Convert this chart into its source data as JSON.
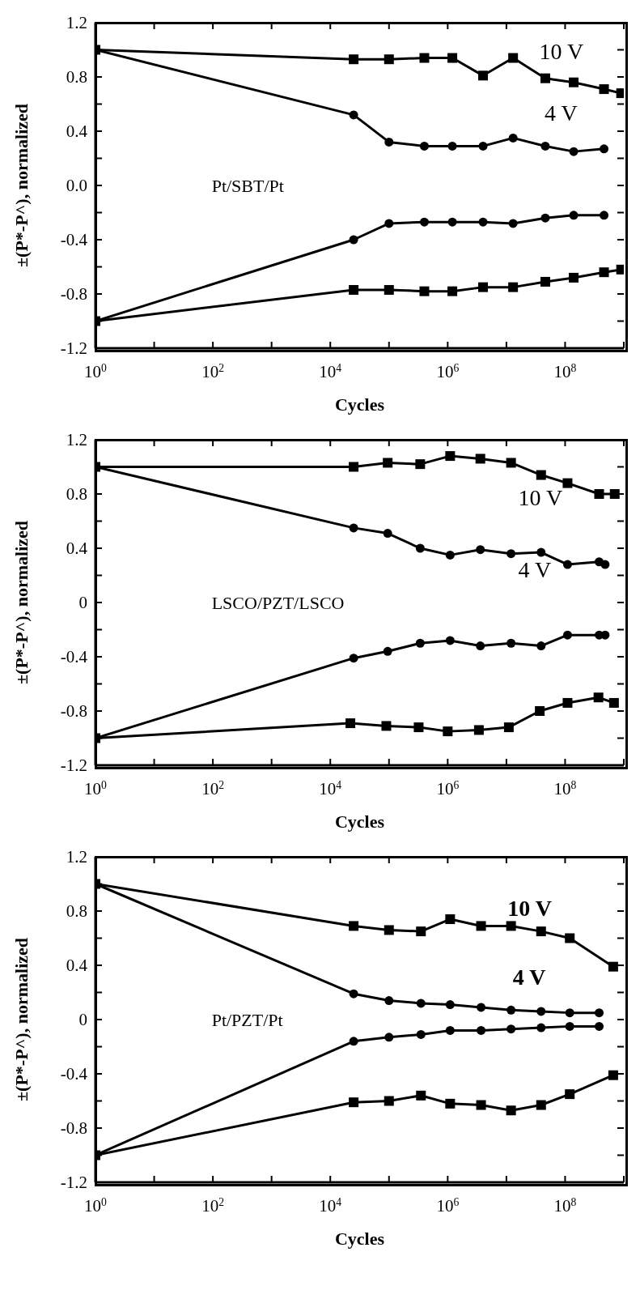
{
  "chart_data": [
    {
      "type": "line",
      "title": "Pt/SBT/Pt",
      "xlabel": "Cycles",
      "ylabel": "±(P*-P^),  normalized",
      "log": "x",
      "line_style": "solid",
      "xlim": [
        1,
        1000000000
      ],
      "xticks": [
        {
          "value": 1,
          "label": "10$^{0}$"
        },
        {
          "value": 10,
          "label": null
        },
        {
          "value": 100,
          "label": "10$^{2}$"
        },
        {
          "value": 1000,
          "label": null
        },
        {
          "value": 10000,
          "label": "10$^{4}$"
        },
        {
          "value": 100000,
          "label": null
        },
        {
          "value": 1000000,
          "label": "10$^{6}$"
        },
        {
          "value": 10000000,
          "label": null
        },
        {
          "value": 100000000,
          "label": "10$^{8}$"
        },
        {
          "value": 1000000000,
          "label": null
        }
      ],
      "ylim": [
        -1.2,
        1.2
      ],
      "yticks": [
        -1.2,
        {
          "value": -1.0,
          "label": null
        },
        -0.8,
        {
          "value": -0.6,
          "label": null
        },
        -0.4,
        {
          "value": -0.2,
          "label": null
        },
        {
          "value": 0,
          "label": "0.0"
        },
        {
          "value": 0.2,
          "label": null
        },
        0.4,
        {
          "value": 0.6,
          "label": null
        },
        0.8,
        {
          "value": 1.0,
          "label": null
        },
        1.2
      ],
      "series": [
        {
          "color": "#000000",
          "marker": "square",
          "x": [
            1,
            25000,
            100000,
            400000,
            1200000,
            4000000,
            13000000,
            46000000,
            140000000,
            460000000,
            900000000
          ],
          "values": [
            1.0,
            0.93,
            0.93,
            0.94,
            0.94,
            0.81,
            0.94,
            0.79,
            0.76,
            0.71,
            0.68
          ]
        },
        {
          "color": "#000000",
          "marker": "circle",
          "x": [
            1,
            25000,
            100000,
            400000,
            1200000,
            4000000,
            13000000,
            46000000,
            140000000,
            460000000
          ],
          "values": [
            1.0,
            0.52,
            0.32,
            0.29,
            0.29,
            0.29,
            0.35,
            0.29,
            0.25,
            0.27
          ]
        },
        {
          "color": "#000000",
          "marker": "square",
          "x": [
            1,
            25000,
            100000,
            400000,
            1200000,
            4000000,
            13000000,
            46000000,
            140000000,
            460000000,
            900000000
          ],
          "values": [
            -1.0,
            -0.77,
            -0.77,
            -0.78,
            -0.78,
            -0.75,
            -0.75,
            -0.71,
            -0.68,
            -0.64,
            -0.62
          ]
        },
        {
          "color": "#000000",
          "marker": "circle",
          "x": [
            1,
            25000,
            100000,
            400000,
            1200000,
            4000000,
            13000000,
            46000000,
            140000000,
            460000000
          ],
          "values": [
            -1.0,
            -0.4,
            -0.28,
            -0.27,
            -0.27,
            -0.27,
            -0.28,
            -0.24,
            -0.22,
            -0.22
          ]
        }
      ],
      "annotations": [
        "10 V",
        "4 V"
      ]
    },
    {
      "type": "line",
      "title": "LSCO/PZT/LSCO",
      "xlabel": "Cycles",
      "ylabel": "±(P*-P^),  normalized",
      "log": "x",
      "line_style": "solid",
      "xlim": [
        1,
        1000000000
      ],
      "xticks": [
        {
          "value": 1,
          "label": "10$^{0}$"
        },
        {
          "value": 10,
          "label": null
        },
        {
          "value": 100,
          "label": "10$^{2}$"
        },
        {
          "value": 1000,
          "label": null
        },
        {
          "value": 10000,
          "label": "10$^{4}$"
        },
        {
          "value": 100000,
          "label": null
        },
        {
          "value": 1000000,
          "label": "10$^{6}$"
        },
        {
          "value": 10000000,
          "label": null
        },
        {
          "value": 100000000,
          "label": "10$^{8}$"
        },
        {
          "value": 1000000000,
          "label": null
        }
      ],
      "ylim": [
        -1.2,
        1.2
      ],
      "yticks": [
        -1.2,
        {
          "value": -1.0,
          "label": null
        },
        -0.8,
        {
          "value": -0.6,
          "label": null
        },
        -0.4,
        {
          "value": -0.2,
          "label": null
        },
        0,
        {
          "value": 0.2,
          "label": null
        },
        0.4,
        {
          "value": 0.6,
          "label": null
        },
        0.8,
        {
          "value": 1.0,
          "label": null
        },
        1.2
      ],
      "series": [
        {
          "color": "#000000",
          "marker": "square",
          "x": [
            1,
            25000,
            95000,
            340000,
            1100000,
            3600000,
            12000000,
            39000000,
            110000000,
            380000000,
            700000000
          ],
          "values": [
            1.0,
            1.0,
            1.03,
            1.02,
            1.08,
            1.06,
            1.03,
            0.94,
            0.88,
            0.8,
            0.8
          ]
        },
        {
          "color": "#000000",
          "marker": "circle",
          "x": [
            1,
            25000,
            95000,
            340000,
            1100000,
            3600000,
            12000000,
            39000000,
            110000000,
            380000000,
            480000000
          ],
          "values": [
            1.0,
            0.55,
            0.51,
            0.4,
            0.35,
            0.39,
            0.36,
            0.37,
            0.28,
            0.3,
            0.28
          ]
        },
        {
          "color": "#000000",
          "marker": "square",
          "x": [
            1,
            22000,
            90000,
            320000,
            1000000,
            3400000,
            11000000,
            37000000,
            110000000,
            370000000,
            680000000
          ],
          "values": [
            -1.0,
            -0.89,
            -0.91,
            -0.92,
            -0.95,
            -0.94,
            -0.92,
            -0.8,
            -0.74,
            -0.7,
            -0.74
          ]
        },
        {
          "color": "#000000",
          "marker": "circle",
          "x": [
            1,
            25000,
            95000,
            340000,
            1100000,
            3600000,
            12000000,
            39000000,
            110000000,
            380000000,
            480000000
          ],
          "values": [
            -1.0,
            -0.41,
            -0.36,
            -0.3,
            -0.28,
            -0.32,
            -0.3,
            -0.32,
            -0.24,
            -0.24,
            -0.24
          ]
        }
      ],
      "annotations": [
        "10 V",
        "4 V"
      ]
    },
    {
      "type": "line",
      "title": "Pt/PZT/Pt",
      "xlabel": "Cycles",
      "ylabel": "±(P*-P^),  normalized",
      "log": "x",
      "line_style": "solid",
      "xlim": [
        1,
        1000000000
      ],
      "xticks": [
        {
          "value": 1,
          "label": "10$^{0}$"
        },
        {
          "value": 10,
          "label": null
        },
        {
          "value": 100,
          "label": "10$^{2}$"
        },
        {
          "value": 1000,
          "label": null
        },
        {
          "value": 10000,
          "label": "10$^{4}$"
        },
        {
          "value": 100000,
          "label": null
        },
        {
          "value": 1000000,
          "label": "10$^{6}$"
        },
        {
          "value": 10000000,
          "label": null
        },
        {
          "value": 100000000,
          "label": "10$^{8}$"
        },
        {
          "value": 1000000000,
          "label": null
        }
      ],
      "ylim": [
        -1.2,
        1.2
      ],
      "yticks": [
        -1.2,
        {
          "value": -1.0,
          "label": null
        },
        -0.8,
        {
          "value": -0.6,
          "label": null
        },
        -0.4,
        {
          "value": -0.2,
          "label": null
        },
        0,
        {
          "value": 0.2,
          "label": null
        },
        0.4,
        {
          "value": 0.6,
          "label": null
        },
        0.8,
        {
          "value": 1.0,
          "label": null
        },
        1.2
      ],
      "series": [
        {
          "color": "#000000",
          "marker": "square",
          "x": [
            1,
            25000,
            100000,
            350000,
            1100000,
            3700000,
            12000000,
            39000000,
            120000000,
            660000000
          ],
          "values": [
            1.0,
            0.69,
            0.66,
            0.65,
            0.74,
            0.69,
            0.69,
            0.65,
            0.6,
            0.39
          ]
        },
        {
          "color": "#000000",
          "marker": "circle",
          "x": [
            1,
            25000,
            100000,
            350000,
            1100000,
            3700000,
            12000000,
            39000000,
            120000000,
            380000000
          ],
          "values": [
            1.0,
            0.19,
            0.14,
            0.12,
            0.11,
            0.09,
            0.07,
            0.06,
            0.05,
            0.05
          ]
        },
        {
          "color": "#000000",
          "marker": "square",
          "x": [
            1,
            25000,
            100000,
            350000,
            1100000,
            3700000,
            12000000,
            39000000,
            120000000,
            660000000
          ],
          "values": [
            -1.0,
            -0.61,
            -0.6,
            -0.56,
            -0.62,
            -0.63,
            -0.67,
            -0.63,
            -0.55,
            -0.41
          ]
        },
        {
          "color": "#000000",
          "marker": "circle",
          "x": [
            1,
            25000,
            100000,
            350000,
            1100000,
            3700000,
            12000000,
            39000000,
            120000000,
            380000000
          ],
          "values": [
            -1.0,
            -0.16,
            -0.13,
            -0.11,
            -0.08,
            -0.08,
            -0.07,
            -0.06,
            -0.05,
            -0.05
          ]
        }
      ],
      "annotations": [
        "10 V",
        "4 V"
      ]
    }
  ]
}
